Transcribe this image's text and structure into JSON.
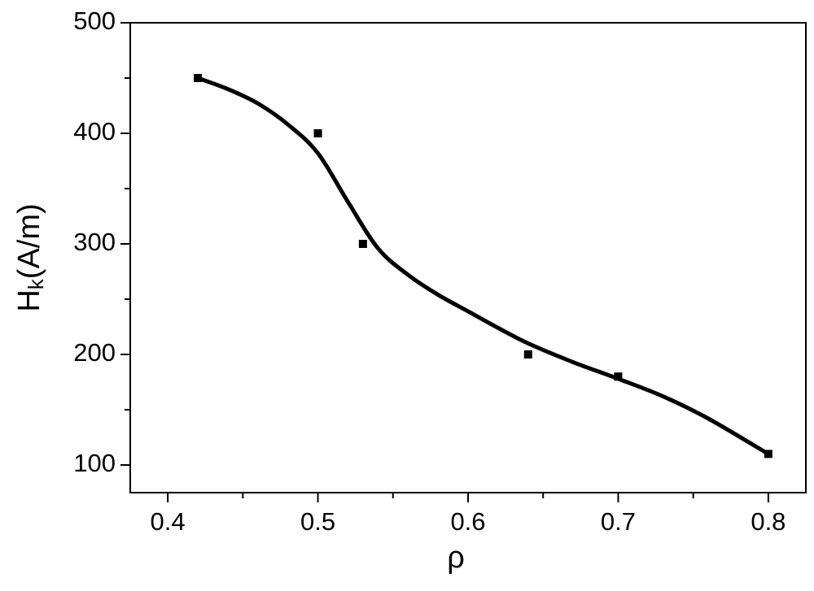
{
  "chart_data": {
    "type": "scatter",
    "xlabel": "ρ",
    "ylabel": {
      "main": "H",
      "sub": "k",
      "unit": "(A/m)"
    },
    "xlim": [
      0.375,
      0.825
    ],
    "ylim": [
      75,
      500
    ],
    "xticks": [
      0.4,
      0.5,
      0.6,
      0.7,
      0.8
    ],
    "yticks": [
      100,
      200,
      300,
      400,
      500
    ],
    "xminorticks": [
      0.45,
      0.55,
      0.65,
      0.75
    ],
    "yminorticks": [
      150,
      250,
      350,
      450
    ],
    "series": [
      {
        "type": "scatter",
        "color": "#000000",
        "x": [
          0.42,
          0.5,
          0.53,
          0.64,
          0.7,
          0.8
        ],
        "values": [
          450,
          400,
          300,
          200,
          180,
          110
        ]
      },
      {
        "type": "line",
        "color": "#000000",
        "x": [
          0.42,
          0.44,
          0.46,
          0.48,
          0.5,
          0.52,
          0.54,
          0.56,
          0.58,
          0.6,
          0.62,
          0.64,
          0.67,
          0.7,
          0.73,
          0.76,
          0.8
        ],
        "values": [
          450,
          440,
          427,
          408,
          382,
          338,
          296,
          272,
          254,
          239,
          224,
          210,
          193,
          178,
          162,
          142,
          110
        ]
      }
    ]
  }
}
